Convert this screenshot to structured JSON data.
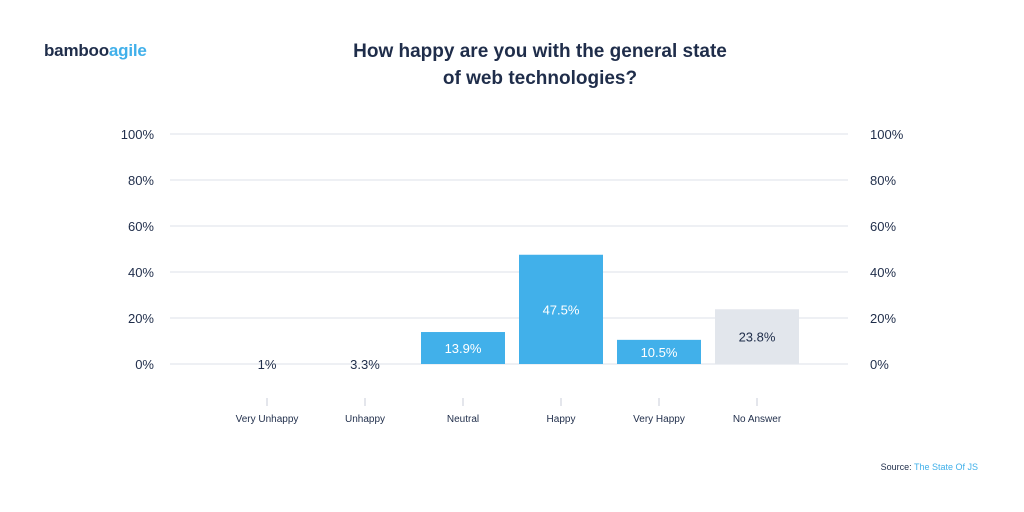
{
  "brand": {
    "name_part1": "bamboo",
    "name_part2": "agile"
  },
  "source": {
    "label": "Source:",
    "link_text": "The State Of JS"
  },
  "colors": {
    "bar": "#41b0ea",
    "bar_no_answer": "#e2e6ec",
    "grid": "#dde1e8",
    "text": "#1f2d4a",
    "accent": "#41b0ea"
  },
  "chart_data": {
    "type": "bar",
    "title_lines": [
      "How happy are you with the general state",
      "of web technologies?"
    ],
    "categories": [
      "Very Unhappy",
      "Unhappy",
      "Neutral",
      "Happy",
      "Very Happy",
      "No Answer"
    ],
    "values": [
      1,
      3.3,
      13.9,
      47.5,
      10.5,
      23.8
    ],
    "value_labels": [
      "1%",
      "3.3%",
      "13.9%",
      "47.5%",
      "10.5%",
      "23.8%"
    ],
    "ylim": [
      0,
      100
    ],
    "yticks": [
      0,
      20,
      40,
      60,
      80,
      100
    ],
    "ytick_labels": [
      "0%",
      "20%",
      "40%",
      "60%",
      "80%",
      "100%"
    ],
    "grid": true,
    "xlabel": "",
    "ylabel": ""
  }
}
